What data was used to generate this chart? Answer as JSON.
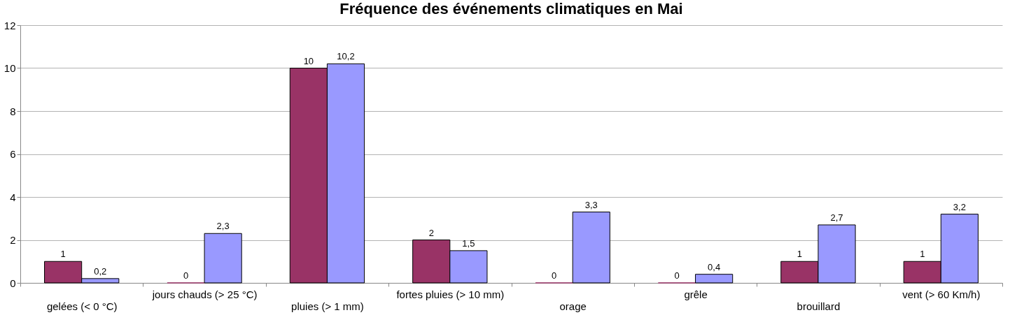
{
  "chart_data": {
    "type": "bar",
    "title": "Fréquence des événements climatiques en Mai",
    "categories": [
      "gelées (< 0 °C)",
      "jours chauds (> 25 °C)",
      "pluies (> 1 mm)",
      "fortes pluies (> 10 mm)",
      "orage",
      "grêle",
      "brouillard",
      "vent (> 60 Km/h)"
    ],
    "series": [
      {
        "color": "#993366",
        "values": [
          1,
          0,
          10,
          2,
          0,
          0,
          1,
          1
        ],
        "value_labels": [
          "1",
          "0",
          "10",
          "2",
          "0",
          "0",
          "1",
          "1"
        ]
      },
      {
        "color": "#9999ff",
        "values": [
          0.2,
          2.3,
          10.2,
          1.5,
          3.3,
          0.4,
          2.7,
          3.2
        ],
        "value_labels": [
          "0,2",
          "2,3",
          "10,2",
          "1,5",
          "3,3",
          "0,4",
          "2,7",
          "3,2"
        ]
      }
    ],
    "ylim": [
      0,
      12
    ],
    "yticks": [
      0,
      2,
      4,
      6,
      8,
      10,
      12
    ],
    "grid": "y"
  }
}
